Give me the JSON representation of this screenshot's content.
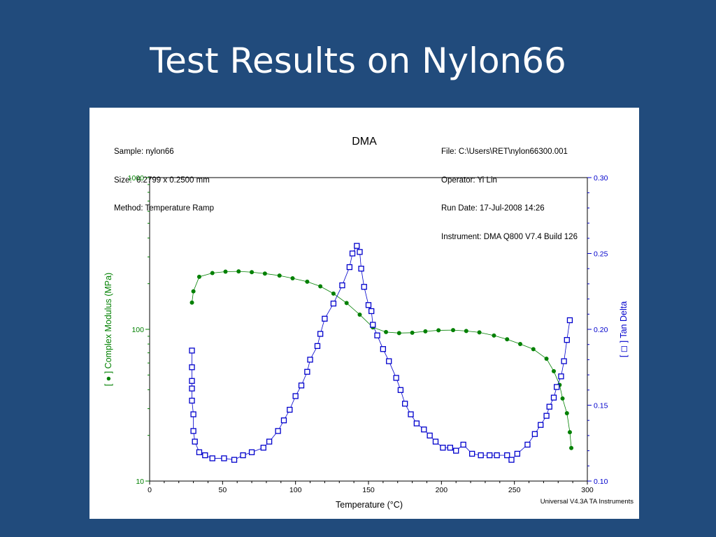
{
  "slide": {
    "title": "Test Results on Nylon66"
  },
  "info": {
    "sample": "Sample: nylon66",
    "size": "Size:  6.2799 x 0.2500 mm",
    "method": "Method: Temperature Ramp",
    "file": "File: C:\\Users\\RET\\nylon66300.001",
    "operator": "Operator: Yi Lin",
    "run_date": "Run Date: 17-Jul-2008 14:26",
    "instrument": "Instrument: DMA Q800 V7.4 Build 126"
  },
  "footer": "Universal V4.3A TA Instruments",
  "colors": {
    "modulus": "#008000",
    "tan_delta": "#0000cc",
    "background": "#214b7c"
  },
  "chart_data": {
    "type": "scatter",
    "title": "DMA",
    "xlabel": "Temperature (°C)",
    "ylabel_left": "[ ● ] Complex Modulus (MPa)",
    "ylabel_right": "[ ◻ ] Tan Delta",
    "xlim": [
      0,
      300
    ],
    "ylim_left": [
      10,
      1000
    ],
    "ylim_left_scale": "log",
    "ylim_right": [
      0.1,
      0.3
    ],
    "x_ticks": [
      "0",
      "50",
      "100",
      "150",
      "200",
      "250",
      "300"
    ],
    "y_left_ticks": [
      "10",
      "100",
      "1000"
    ],
    "y_right_ticks": [
      "0.10",
      "0.15",
      "0.20",
      "0.25",
      "0.30"
    ],
    "series": [
      {
        "name": "Complex Modulus",
        "axis": "left",
        "marker": "filled-circle",
        "color": "#008000",
        "x": [
          29,
          30,
          34,
          43,
          52,
          61,
          70,
          79,
          89,
          98,
          108,
          117,
          126,
          135,
          144,
          153,
          162,
          171,
          180,
          189,
          198,
          208,
          217,
          226,
          236,
          245,
          254,
          263,
          272,
          277,
          281,
          283,
          286,
          288,
          289
        ],
        "y": [
          150,
          178,
          222,
          235,
          240,
          241,
          238,
          233,
          226,
          217,
          206,
          192,
          172,
          149,
          125,
          103,
          96,
          94.5,
          95,
          97,
          98.5,
          98.8,
          97.5,
          95.5,
          91,
          86,
          80,
          74,
          64,
          53,
          43,
          35,
          28,
          21,
          16.5
        ]
      },
      {
        "name": "Tan Delta",
        "axis": "right",
        "marker": "open-square",
        "color": "#0000cc",
        "x": [
          29,
          29,
          29,
          29,
          29,
          30,
          30,
          31,
          34,
          38,
          43,
          51,
          58,
          64,
          70,
          78,
          82,
          88,
          92,
          96,
          100,
          104,
          108,
          110,
          115,
          117,
          120,
          126,
          132,
          137,
          139,
          142,
          144,
          145,
          147,
          150,
          152,
          153,
          156,
          160,
          164,
          169,
          172,
          175,
          179,
          183,
          188,
          192,
          196,
          201,
          206,
          210,
          215,
          221,
          227,
          233,
          238,
          245,
          248,
          252,
          259,
          264,
          268,
          272,
          274,
          277,
          279,
          282,
          284,
          286,
          288
        ],
        "y": [
          0.186,
          0.175,
          0.166,
          0.161,
          0.153,
          0.144,
          0.133,
          0.126,
          0.119,
          0.117,
          0.115,
          0.115,
          0.114,
          0.117,
          0.119,
          0.122,
          0.126,
          0.133,
          0.14,
          0.147,
          0.156,
          0.163,
          0.172,
          0.18,
          0.189,
          0.197,
          0.207,
          0.217,
          0.229,
          0.241,
          0.25,
          0.255,
          0.251,
          0.24,
          0.228,
          0.216,
          0.212,
          0.203,
          0.196,
          0.187,
          0.179,
          0.168,
          0.16,
          0.151,
          0.144,
          0.138,
          0.134,
          0.13,
          0.126,
          0.122,
          0.122,
          0.12,
          0.124,
          0.118,
          0.117,
          0.117,
          0.117,
          0.117,
          0.114,
          0.118,
          0.124,
          0.131,
          0.137,
          0.143,
          0.149,
          0.155,
          0.162,
          0.169,
          0.179,
          0.193,
          0.206
        ]
      }
    ]
  }
}
